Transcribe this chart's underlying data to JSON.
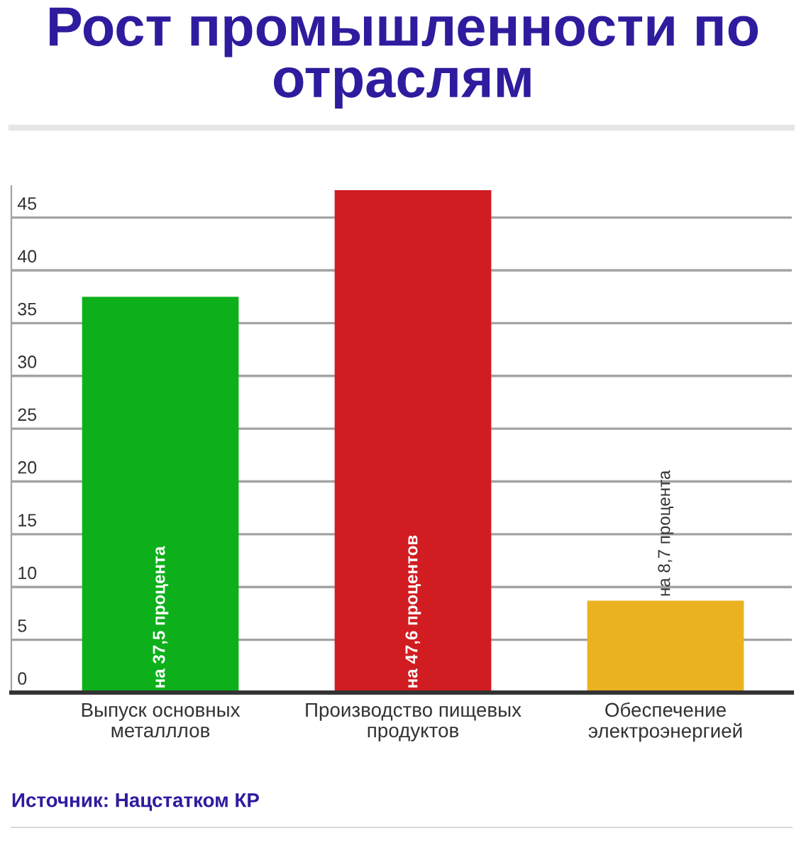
{
  "chart_data": {
    "type": "bar",
    "title": "Рост промышленности по отраслям",
    "categories": [
      "Выпуск основных\nметалллов",
      "Производство пищевых\nпродуктов",
      "Обеспечение\nэлектроэнергией"
    ],
    "values": [
      37.5,
      47.6,
      8.7
    ],
    "colors": [
      "#0db01b",
      "#d11c22",
      "#ebb220"
    ],
    "value_labels": [
      "на 37,5 процента",
      "на 47,6 процентов",
      "на 8,7 процента"
    ],
    "ylim": [
      0,
      48
    ],
    "yticks": [
      0,
      5,
      10,
      15,
      20,
      25,
      30,
      35,
      40,
      45
    ],
    "grid": "y",
    "annotations": [
      "Источник: Нацстатком КР"
    ]
  }
}
